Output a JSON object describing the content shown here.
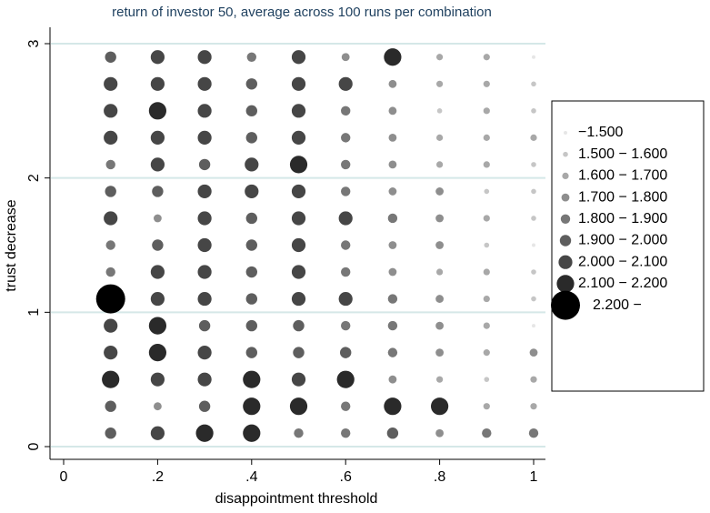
{
  "chart_data": {
    "type": "scatter",
    "title": "return of investor 50, average across 100 runs per combination",
    "x_label": "disappointment threshold",
    "y_label": "trust decrease",
    "xlim": [
      0,
      1
    ],
    "ylim": [
      0,
      3
    ],
    "xticks": [
      0,
      {
        "value": 0.2,
        "label": ".2"
      },
      {
        "value": 0.4,
        "label": ".4"
      },
      {
        "value": 0.6,
        "label": ".6"
      },
      {
        "value": 0.8,
        "label": ".8"
      },
      1
    ],
    "yticks": [
      0,
      1,
      2,
      3
    ],
    "grid": true,
    "legend": "right",
    "series": [
      {
        "name": "−1.500",
        "color": "#e6e6e6",
        "x": [
          1,
          1,
          1
        ],
        "y": [
          2.9,
          1.5,
          0.9
        ]
      },
      {
        "name": "1.500 − 1.600",
        "color": "#c6c6c6",
        "x": [
          1,
          0.8,
          1,
          1,
          0.9,
          1,
          1,
          0.9,
          1,
          1,
          0.9
        ],
        "y": [
          2.7,
          2.5,
          2.5,
          2.1,
          1.9,
          1.9,
          1.7,
          1.5,
          1.3,
          1.1,
          0.5
        ]
      },
      {
        "name": "1.600 − 1.700",
        "color": "#a8a8a8",
        "x": [
          0.8,
          0.9,
          0.8,
          0.9,
          0.9,
          0.8,
          0.9,
          1,
          0.8,
          0.9,
          0.9,
          0.8,
          0.9,
          0.9,
          0.9,
          0.9,
          0.8,
          1,
          0.9,
          1
        ],
        "y": [
          2.9,
          2.9,
          2.7,
          2.7,
          2.5,
          2.3,
          2.3,
          2.3,
          2.1,
          2.1,
          1.7,
          1.3,
          1.3,
          1.1,
          0.9,
          0.7,
          0.5,
          0.5,
          0.3,
          0.3
        ]
      },
      {
        "name": "1.700 − 1.800",
        "color": "#8e8e8e",
        "x": [
          0.6,
          0.7,
          0.7,
          0.7,
          0.7,
          0.7,
          0.8,
          0.2,
          0.8,
          0.7,
          0.8,
          0.7,
          0.8,
          0.8,
          0.8,
          1,
          0.7,
          0.2,
          0.8
        ],
        "y": [
          2.9,
          2.7,
          2.5,
          2.3,
          2.1,
          1.9,
          1.9,
          1.7,
          1.7,
          1.5,
          1.5,
          1.3,
          1.1,
          0.9,
          0.7,
          0.7,
          0.5,
          0.3,
          0.1
        ]
      },
      {
        "name": "1.800 − 1.900",
        "color": "#777777",
        "x": [
          0.4,
          0.6,
          0.6,
          0.1,
          0.6,
          0.6,
          0.7,
          0.1,
          0.6,
          0.1,
          0.6,
          0.7,
          0.6,
          0.7,
          0.7,
          0.6,
          0.5,
          0.6,
          0.9,
          1
        ],
        "y": [
          2.9,
          2.5,
          2.3,
          2.1,
          2.1,
          1.9,
          1.7,
          1.5,
          1.5,
          1.3,
          1.3,
          1.1,
          0.9,
          0.9,
          0.7,
          0.3,
          0.1,
          0.1,
          0.1,
          0.1
        ]
      },
      {
        "name": "1.900 − 2.000",
        "color": "#5e5e5e",
        "x": [
          0.1,
          0.4,
          0.4,
          0.4,
          0.3,
          0.1,
          0.2,
          0.4,
          0.2,
          0.4,
          0.4,
          0.4,
          0.3,
          0.4,
          0.5,
          0.4,
          0.5,
          0.6,
          0.1,
          0.3,
          0.1,
          0.7
        ],
        "y": [
          2.9,
          2.7,
          2.5,
          2.3,
          2.1,
          1.9,
          1.9,
          1.7,
          1.5,
          1.5,
          1.3,
          1.1,
          0.9,
          0.9,
          0.9,
          0.7,
          0.7,
          0.7,
          0.3,
          0.3,
          0.1,
          0.1
        ]
      },
      {
        "name": "2.000 − 2.100",
        "color": "#464646",
        "x": [
          0.2,
          0.3,
          0.5,
          0.1,
          0.2,
          0.3,
          0.5,
          0.6,
          0.1,
          0.3,
          0.5,
          0.1,
          0.2,
          0.3,
          0.5,
          0.2,
          0.4,
          0.3,
          0.4,
          0.5,
          0.1,
          0.3,
          0.5,
          0.6,
          0.3,
          0.5,
          0.2,
          0.3,
          0.5,
          0.2,
          0.3,
          0.5,
          0.6,
          0.1,
          0.1,
          0.3,
          0.2,
          0.3,
          0.5,
          0.2
        ],
        "y": [
          2.9,
          2.9,
          2.9,
          2.7,
          2.7,
          2.7,
          2.7,
          2.7,
          2.5,
          2.5,
          2.5,
          2.3,
          2.3,
          2.3,
          2.3,
          2.1,
          2.1,
          1.9,
          1.9,
          1.9,
          1.7,
          1.7,
          1.7,
          1.7,
          1.5,
          1.5,
          1.3,
          1.3,
          1.3,
          1.1,
          1.1,
          1.1,
          1.1,
          0.9,
          0.7,
          0.7,
          0.5,
          0.5,
          0.5,
          0.1
        ]
      },
      {
        "name": "2.100 − 2.200",
        "color": "#2a2a2a",
        "x": [
          0.7,
          0.2,
          0.5,
          0.2,
          0.2,
          0.1,
          0.4,
          0.6,
          0.4,
          0.5,
          0.7,
          0.8,
          0.3,
          0.4
        ],
        "y": [
          2.9,
          2.5,
          2.1,
          0.9,
          0.7,
          0.5,
          0.5,
          0.5,
          0.3,
          0.3,
          0.3,
          0.3,
          0.1,
          0.1
        ]
      },
      {
        "name": "2.200 −",
        "color": "#000000",
        "x": [
          0.1
        ],
        "y": [
          1.1
        ]
      }
    ]
  }
}
